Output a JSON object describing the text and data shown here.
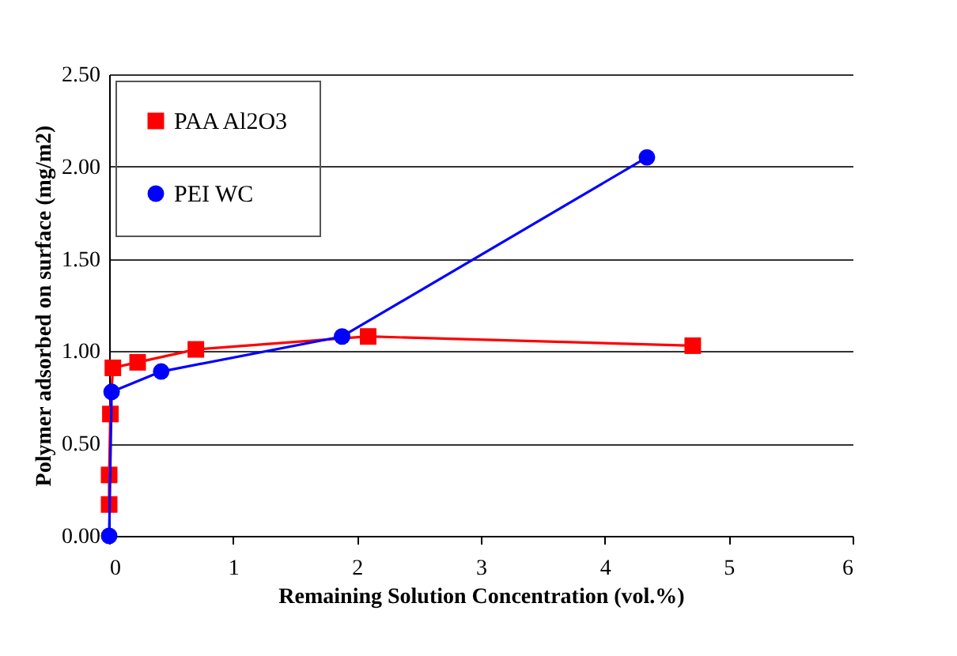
{
  "chart_data": {
    "type": "line",
    "xlabel": "Remaining Solution Concentration (vol.%)",
    "ylabel": "Polymer adsorbed on surface (mg/m2)",
    "xlim": [
      0,
      6
    ],
    "xticks": [
      0,
      1,
      2,
      3,
      4,
      5,
      6
    ],
    "ylim": [
      0,
      2.5
    ],
    "yticks": [
      {
        "value": 0,
        "label": "0.00"
      },
      {
        "value": 0.5,
        "label": "0.50"
      },
      {
        "value": 1,
        "label": "1.00"
      },
      {
        "value": 1.5,
        "label": "1.50"
      },
      {
        "value": 2,
        "label": "2.00"
      },
      {
        "value": 2.5,
        "label": "2.50"
      }
    ],
    "grid": "y",
    "legend": "top left",
    "series": [
      {
        "name": "PAA Al2O3",
        "color": "#ff0000",
        "marker": "square",
        "x": [
          0,
          0,
          0.01,
          0.03,
          0.23,
          0.7,
          2.09,
          4.71
        ],
        "values": [
          0.17,
          0.33,
          0.66,
          0.91,
          0.94,
          1.01,
          1.08,
          1.03
        ]
      },
      {
        "name": "PEI WC",
        "color": "#0000ff",
        "marker": "circle",
        "x": [
          0,
          0.02,
          0.42,
          1.88,
          4.34
        ],
        "values": [
          0,
          0.78,
          0.89,
          1.08,
          2.05
        ]
      }
    ]
  }
}
